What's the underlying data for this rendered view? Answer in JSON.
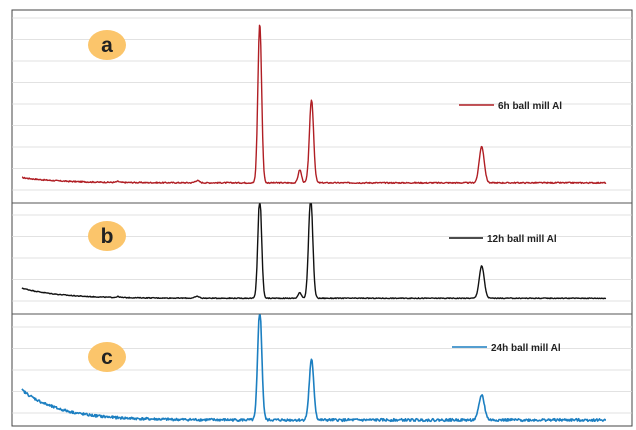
{
  "chart_data": {
    "type": "line",
    "title": "",
    "xlabel": "",
    "ylabel": "",
    "grid": true,
    "colors": {
      "grid": "#d9d9d9",
      "frame": "#444444",
      "badge_fill": "#fbc56b"
    },
    "panels": [
      {
        "label": "a",
        "series_name": "6h ball mill Al",
        "color": "#b01e24",
        "legend_position": "right",
        "baseline": 3,
        "decay": 3,
        "noise": 0.35,
        "peaks": [
          {
            "x": 21.5,
            "h": 0.6,
            "w": 0.35
          },
          {
            "x": 31.0,
            "h": 1.3,
            "w": 0.5
          },
          {
            "x": 38.5,
            "h": 92,
            "w": 0.45
          },
          {
            "x": 43.3,
            "h": 7.5,
            "w": 0.4
          },
          {
            "x": 44.7,
            "h": 48,
            "w": 0.5
          },
          {
            "x": 65.1,
            "h": 21,
            "w": 0.6
          }
        ]
      },
      {
        "label": "b",
        "series_name": "12h ball mill Al",
        "color": "#111111",
        "legend_position": "right",
        "baseline": 3,
        "decay": 11,
        "noise": 0.45,
        "peaks": [
          {
            "x": 21.5,
            "h": 1.0,
            "w": 0.35
          },
          {
            "x": 31.0,
            "h": 2.0,
            "w": 0.5
          },
          {
            "x": 38.5,
            "h": 110,
            "w": 0.45
          },
          {
            "x": 43.3,
            "h": 6.0,
            "w": 0.4
          },
          {
            "x": 44.6,
            "h": 110,
            "w": 0.5
          },
          {
            "x": 65.1,
            "h": 35,
            "w": 0.6
          }
        ]
      },
      {
        "label": "c",
        "series_name": "24h ball mill Al",
        "color": "#1c7fc1",
        "legend_position": "right",
        "baseline": 4,
        "decay": 30,
        "noise": 1.3,
        "peaks": [
          {
            "x": 38.5,
            "h": 110,
            "w": 0.5
          },
          {
            "x": 44.7,
            "h": 60,
            "w": 0.55
          },
          {
            "x": 65.1,
            "h": 25,
            "w": 0.65
          }
        ]
      }
    ],
    "x_range": [
      10,
      80
    ],
    "y_range": [
      0,
      100
    ]
  }
}
